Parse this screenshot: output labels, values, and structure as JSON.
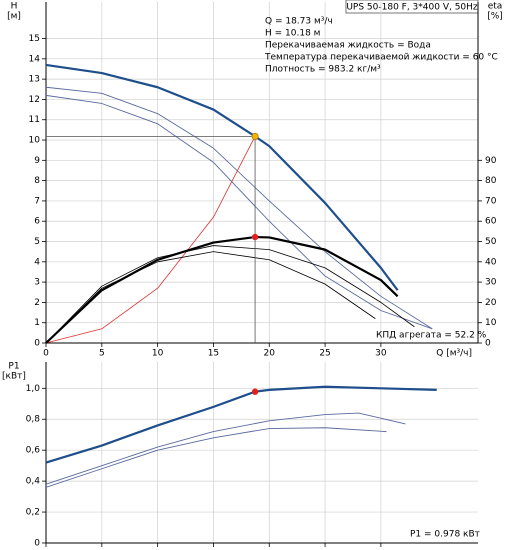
{
  "chart_data": [
    {
      "type": "line",
      "title": "UPS 50-180 F, 3*400 V, 50Hz",
      "annotations": [
        "Q = 18.73 м³/ч",
        "H = 10.18 м",
        "Перекачиваемая жидкость = Вода",
        "Температура перекачиваемой жидкости = 60 °C",
        "Плотность = 983.2 кг/м³"
      ],
      "efficiency_label": "КПД агрегата = 52.2 %",
      "xlabel": "Q [м³/ч]",
      "ylabel": [
        "H",
        "[м]"
      ],
      "y2label": [
        "eta",
        "[%]"
      ],
      "xlim": [
        0,
        38.7
      ],
      "ylim": [
        0,
        16.8
      ],
      "y2lim": [
        0,
        168
      ],
      "xticks": [
        0,
        5,
        10,
        15,
        20,
        25,
        30
      ],
      "yticks": [
        0,
        1,
        2,
        3,
        4,
        5,
        6,
        7,
        8,
        9,
        10,
        11,
        12,
        13,
        14,
        15
      ],
      "y2ticks": [
        0,
        10,
        20,
        30,
        40,
        50,
        60,
        70,
        80,
        90
      ],
      "grid": true,
      "series": [
        {
          "color": "#5b6a9e",
          "linewidth": 0.9,
          "x": [
            0,
            5,
            10,
            15,
            20,
            25,
            30,
            34.6
          ],
          "values": [
            12.6,
            12.3,
            11.3,
            9.6,
            7.0,
            4.5,
            2.3,
            0.7
          ]
        },
        {
          "color": "#5b6a9e",
          "linewidth": 0.9,
          "x": [
            0,
            5,
            10,
            15,
            20,
            25,
            30,
            34.6
          ],
          "values": [
            12.2,
            11.8,
            10.8,
            8.9,
            6.0,
            3.3,
            1.6,
            0.7
          ]
        },
        {
          "color": "#1f4e8c",
          "linewidth": 2.2,
          "x": [
            0,
            5,
            10,
            15,
            18.73,
            20,
            25,
            30,
            31.5
          ],
          "values": [
            13.7,
            13.3,
            12.6,
            11.5,
            10.18,
            9.7,
            6.9,
            3.7,
            2.6
          ]
        },
        {
          "color": "#e03030",
          "linewidth": 0.8,
          "x": [
            0,
            5,
            10,
            15,
            18.73
          ],
          "values": [
            0,
            0.7,
            2.7,
            6.2,
            10.18
          ]
        },
        {
          "color": "#000000",
          "linewidth": 0.8,
          "axis": "y2",
          "x": [
            0,
            5,
            10,
            15,
            20,
            25,
            30,
            33
          ],
          "values": [
            0,
            28,
            42,
            48,
            46,
            37,
            20,
            8
          ]
        },
        {
          "color": "#000000",
          "linewidth": 0.8,
          "axis": "y2",
          "x": [
            0,
            5,
            10,
            15,
            20,
            25,
            29.5
          ],
          "values": [
            0,
            27,
            40,
            45,
            41,
            29,
            12
          ]
        },
        {
          "color": "#000000",
          "linewidth": 2.2,
          "axis": "y2",
          "x": [
            0,
            5,
            10,
            15,
            18.73,
            20,
            25,
            30,
            31.5
          ],
          "values": [
            0,
            26,
            41,
            49.5,
            52.2,
            52,
            46,
            31,
            23
          ]
        }
      ],
      "points": [
        {
          "x": 18.73,
          "y": 10.18,
          "color": "#f0b400",
          "crosshair": true
        },
        {
          "x": 18.73,
          "y": 52.2,
          "color": "#e02020",
          "axis": "y2"
        }
      ]
    },
    {
      "type": "line",
      "ylabel": [
        "P1",
        "[кВт]"
      ],
      "power_label": "P1 = 0.978 кВт",
      "xlim": [
        0,
        38.7
      ],
      "ylim": [
        0,
        1.17
      ],
      "xticks": [
        0,
        5,
        10,
        15,
        20,
        25,
        30
      ],
      "yticks": [
        0,
        {
          "value": 0.2,
          "label": "0,2"
        },
        {
          "value": 0.4,
          "label": "0,4"
        },
        {
          "value": 0.6,
          "label": "0,6"
        },
        {
          "value": 0.8,
          "label": "0,8"
        },
        {
          "value": 1,
          "label": "1,0"
        }
      ],
      "grid": true,
      "series": [
        {
          "color": "#5b6a9e",
          "linewidth": 0.9,
          "x": [
            0,
            5,
            10,
            15,
            20,
            25,
            28,
            32.2
          ],
          "values": [
            0.38,
            0.5,
            0.62,
            0.72,
            0.79,
            0.83,
            0.84,
            0.77
          ]
        },
        {
          "color": "#5b6a9e",
          "linewidth": 0.9,
          "x": [
            0,
            5,
            10,
            15,
            20,
            25,
            30.5
          ],
          "values": [
            0.36,
            0.48,
            0.6,
            0.68,
            0.74,
            0.745,
            0.72
          ]
        },
        {
          "color": "#1f4e8c",
          "linewidth": 2.2,
          "x": [
            0,
            5,
            10,
            15,
            18.73,
            20,
            25,
            30,
            35
          ],
          "values": [
            0.52,
            0.63,
            0.76,
            0.88,
            0.978,
            0.99,
            1.01,
            1.0,
            0.99
          ]
        }
      ],
      "points": [
        {
          "x": 18.73,
          "y": 0.978,
          "color": "#e02020"
        }
      ]
    }
  ]
}
